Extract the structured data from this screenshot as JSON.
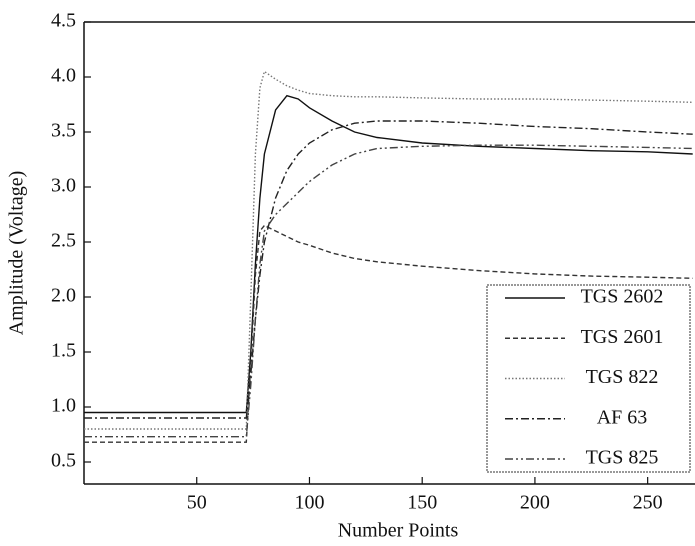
{
  "chart_data": {
    "type": "line",
    "x_label": "Number Points",
    "y_label": "Amplitude (Voltage)",
    "x": [
      0,
      72,
      74,
      76,
      78,
      80,
      85,
      90,
      95,
      100,
      110,
      120,
      130,
      150,
      175,
      200,
      225,
      250,
      270
    ],
    "series": [
      {
        "name": "TGS 2602",
        "color": "#111111",
        "dash": "solid",
        "values": [
          0.95,
          0.95,
          1.5,
          2.3,
          2.9,
          3.3,
          3.7,
          3.83,
          3.8,
          3.72,
          3.6,
          3.5,
          3.45,
          3.4,
          3.37,
          3.35,
          3.33,
          3.32,
          3.3
        ]
      },
      {
        "name": "TGS 2601",
        "color": "#333333",
        "dash": "dashed",
        "values": [
          0.68,
          0.68,
          1.4,
          2.2,
          2.6,
          2.65,
          2.6,
          2.55,
          2.5,
          2.47,
          2.4,
          2.35,
          2.32,
          2.28,
          2.24,
          2.21,
          2.19,
          2.18,
          2.17
        ]
      },
      {
        "name": "TGS 822",
        "color": "#777777",
        "dash": "dotted",
        "values": [
          0.8,
          0.8,
          2.0,
          3.3,
          3.9,
          4.05,
          3.98,
          3.92,
          3.88,
          3.85,
          3.83,
          3.82,
          3.82,
          3.81,
          3.8,
          3.8,
          3.79,
          3.78,
          3.77
        ]
      },
      {
        "name": "AF 63",
        "color": "#222222",
        "dash": "dashdot",
        "values": [
          0.9,
          0.9,
          1.3,
          1.8,
          2.2,
          2.5,
          2.9,
          3.15,
          3.3,
          3.4,
          3.52,
          3.58,
          3.6,
          3.6,
          3.58,
          3.55,
          3.53,
          3.5,
          3.48
        ]
      },
      {
        "name": "TGS 825",
        "color": "#444444",
        "dash": "dashdotdot",
        "values": [
          0.73,
          0.73,
          1.2,
          1.8,
          2.3,
          2.6,
          2.75,
          2.85,
          2.95,
          3.05,
          3.2,
          3.3,
          3.35,
          3.37,
          3.38,
          3.38,
          3.37,
          3.36,
          3.35
        ]
      }
    ],
    "xlim": [
      0,
      271
    ],
    "ylim": [
      0.3,
      4.5
    ],
    "xticks": [
      50,
      100,
      150,
      200,
      250
    ],
    "yticks": [
      4.5,
      {
        "value": 4,
        "label": "4.0"
      },
      3.5,
      {
        "value": 3,
        "label": "3.0"
      },
      2.5,
      {
        "value": 2,
        "label": "2.0"
      },
      1.5,
      {
        "value": 1,
        "label": "1.0"
      },
      0.5
    ],
    "legend": "lower right"
  }
}
